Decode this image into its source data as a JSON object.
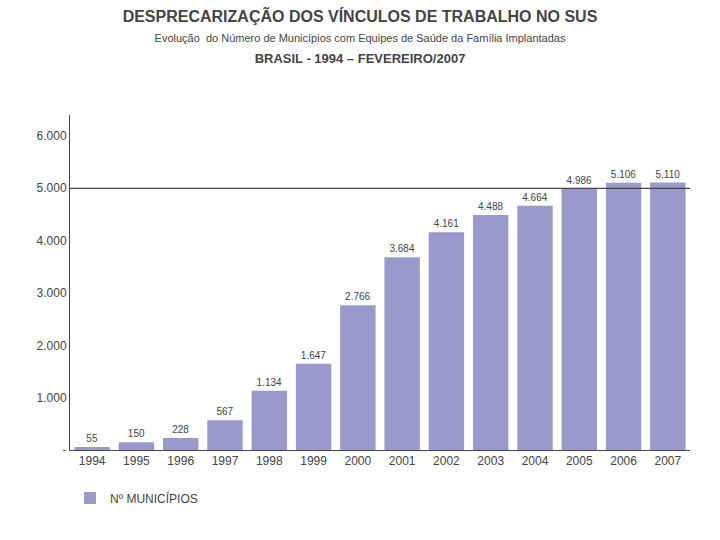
{
  "chart_data": {
    "type": "bar",
    "title": "DESPRECARIZAÇÃO DOS VÍNCULOS DE TRABALHO NO SUS",
    "subtitle": [
      "Evolução  do Número de Municípios com Equipes de Saúde da Família Implantadas",
      "BRASIL - 1994 – FEVEREIRO/2007"
    ],
    "categories": [
      "1994",
      "1995",
      "1996",
      "1997",
      "1998",
      "1999",
      "2000",
      "2001",
      "2002",
      "2003",
      "2004",
      "2005",
      "2006",
      "2007"
    ],
    "series": [
      {
        "name": "Nº MUNICÍPIOS",
        "color": "#9999cc",
        "values": [
          55,
          150,
          228,
          567,
          1134,
          1647,
          2766,
          3684,
          4161,
          4488,
          4664,
          4986,
          5106,
          5110
        ],
        "value_labels": [
          "55",
          "150",
          "228",
          "567",
          "1.134",
          "1.647",
          "2.766",
          "3.684",
          "4.161",
          "4.488",
          "4.664",
          "4.986",
          "5.106",
          "5.110"
        ]
      }
    ],
    "ylim": [
      0,
      6400
    ],
    "yticks": [
      {
        "value": 0,
        "label": "-"
      },
      {
        "value": 1000,
        "label": "1.000"
      },
      {
        "value": 2000,
        "label": "2.000"
      },
      {
        "value": 3000,
        "label": "3.000"
      },
      {
        "value": 4000,
        "label": "4.000"
      },
      {
        "value": 5000,
        "label": "5.000"
      },
      {
        "value": 6000,
        "label": "6.000"
      }
    ],
    "hline": 5000,
    "grid": false,
    "legend": "lower left",
    "data_labels": true
  }
}
